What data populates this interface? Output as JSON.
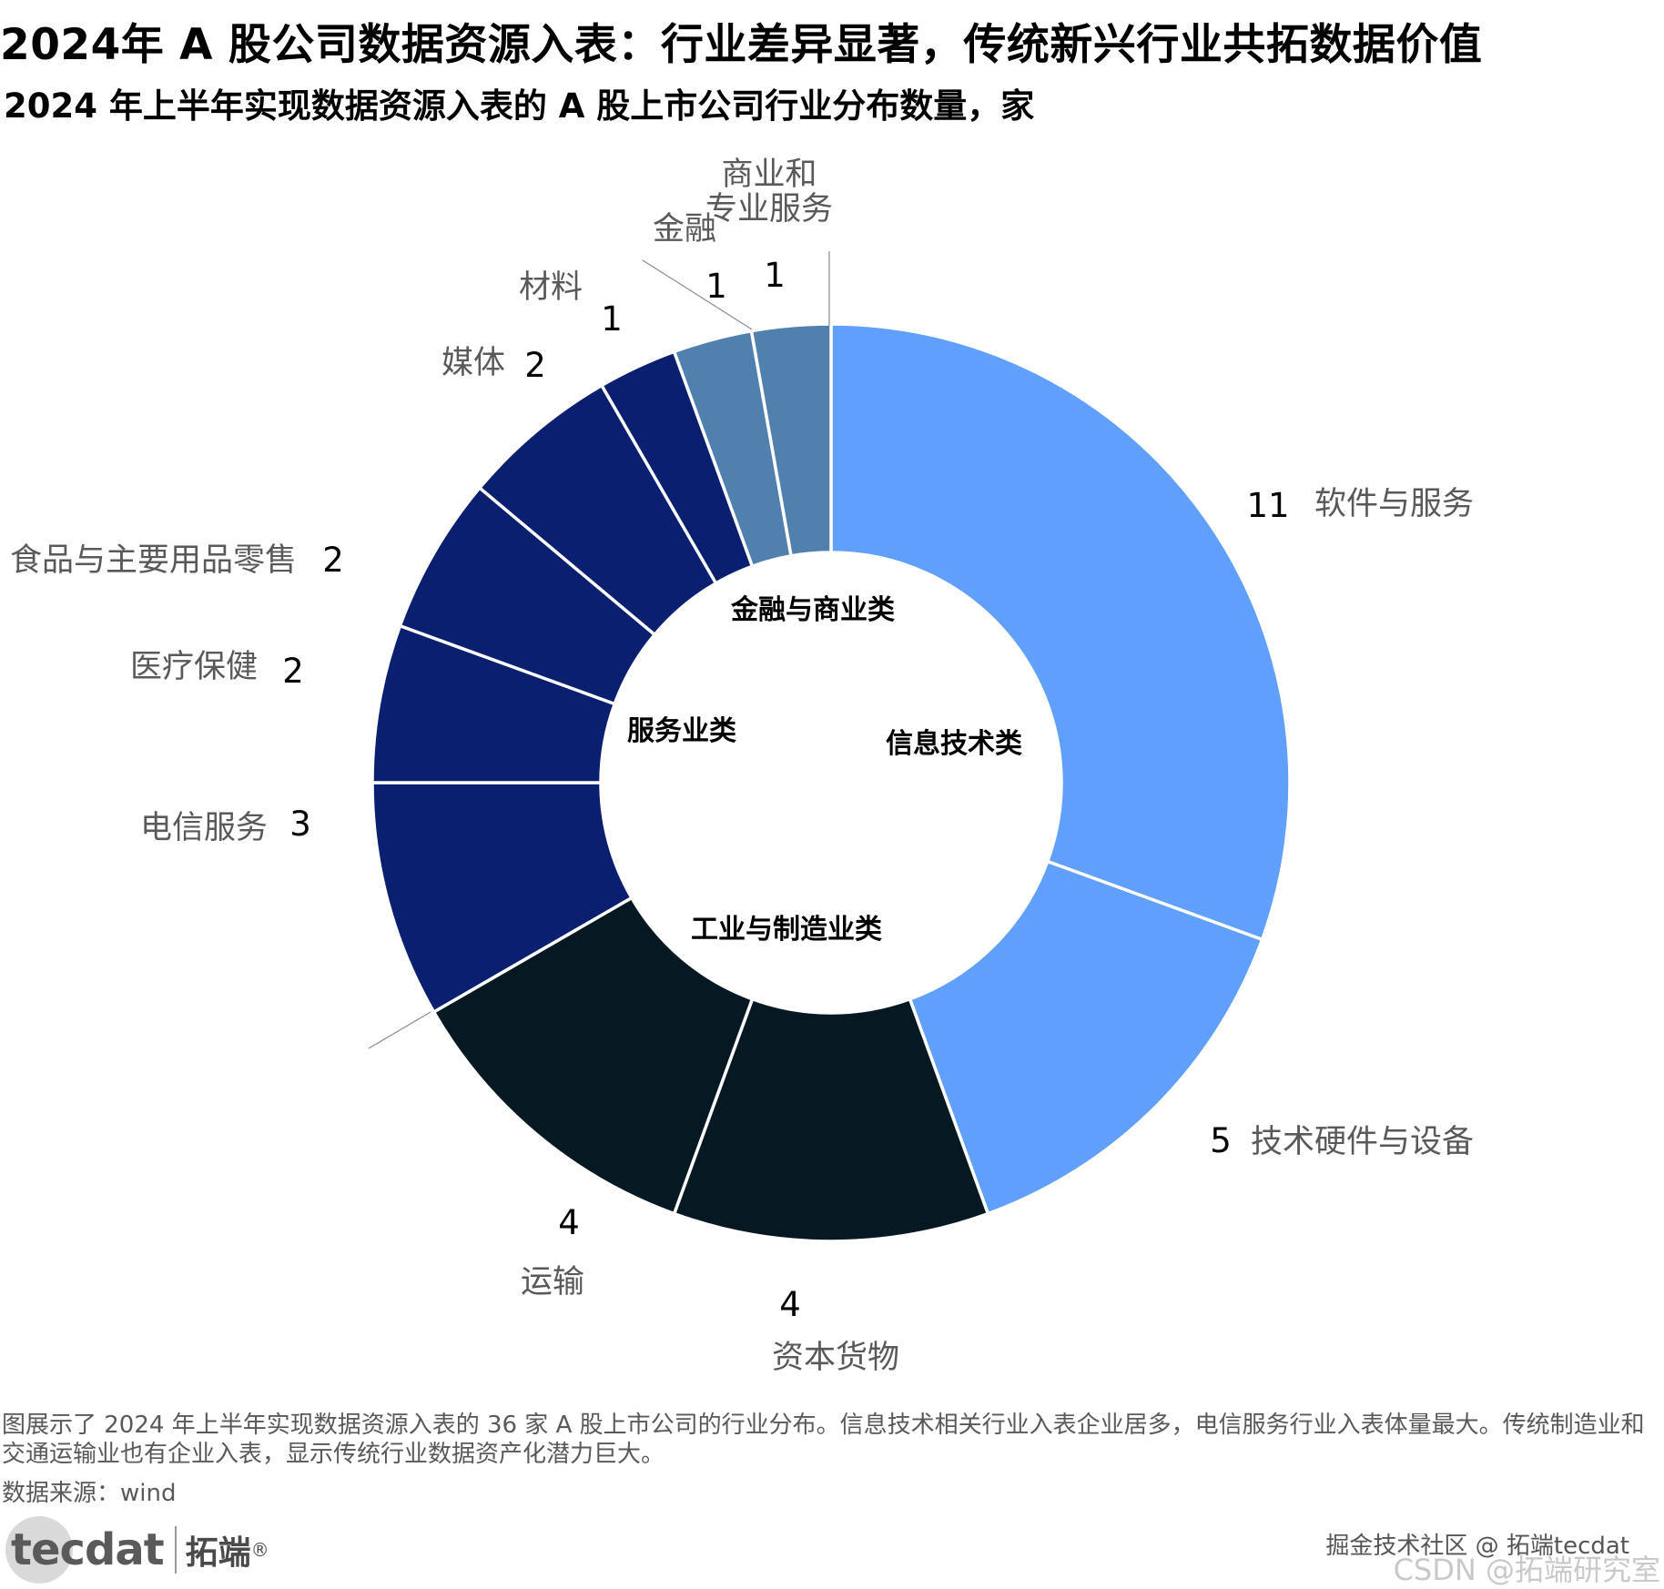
{
  "title": "2024年 A 股公司数据资源入表：行业差异显著，传统新兴行业共拓数据价值",
  "subtitle": "2024 年上半年实现数据资源入表的 A 股上市公司行业分布数量，家",
  "chart_data": {
    "type": "pie",
    "style": "donut",
    "start_angle_deg": 0,
    "direction": "clockwise",
    "slices": [
      {
        "label": "软件与服务",
        "value": 11,
        "color": "#619ffc",
        "group": "信息技术类"
      },
      {
        "label": "技术硬件与设备",
        "value": 5,
        "color": "#619ffc",
        "group": "信息技术类"
      },
      {
        "label": "资本货物",
        "value": 4,
        "color": "#061923",
        "group": "工业与制造业类"
      },
      {
        "label": "运输",
        "value": 4,
        "color": "#061923",
        "group": "工业与制造业类"
      },
      {
        "label": "",
        "value": 0,
        "color": "#061923",
        "group": "工业与制造业类"
      },
      {
        "label": "电信服务",
        "value": 3,
        "color": "#0a1f70",
        "group": "服务业类"
      },
      {
        "label": "医疗保健",
        "value": 2,
        "color": "#0a1f70",
        "group": "服务业类"
      },
      {
        "label": "食品与主要用品零售",
        "value": 2,
        "color": "#0a1f70",
        "group": "服务业类"
      },
      {
        "label": "媒体",
        "value": 2,
        "color": "#0a1f70",
        "group": "服务业类"
      },
      {
        "label": "材料",
        "value": 1,
        "color": "#0a1f70",
        "group": "服务业类"
      },
      {
        "label": "金融",
        "value": 1,
        "color": "#5080ad",
        "group": "金融与商业类"
      },
      {
        "label": "商业和\n专业服务",
        "value": 1,
        "color": "#5080ad",
        "group": "金融与商业类"
      }
    ],
    "groups": [
      "信息技术类",
      "工业与制造业类",
      "服务业类",
      "金融与商业类"
    ]
  },
  "description": "图展示了 2024 年上半年实现数据资源入表的 36 家 A 股上市公司的行业分布。信息技术相关行业入表企业居多，电信服务行业入表体量最大。传统制造业和交通运输业也有企业入表，显示传统行业数据资产化潜力巨大。",
  "source": "数据来源：wind",
  "logo": {
    "mark": "tecdat",
    "name": "拓端",
    "reg": "®"
  },
  "watermark": {
    "line1": "掘金技术社区 @ 拓端tecdat",
    "line2": "CSDN @拓端研究室"
  }
}
